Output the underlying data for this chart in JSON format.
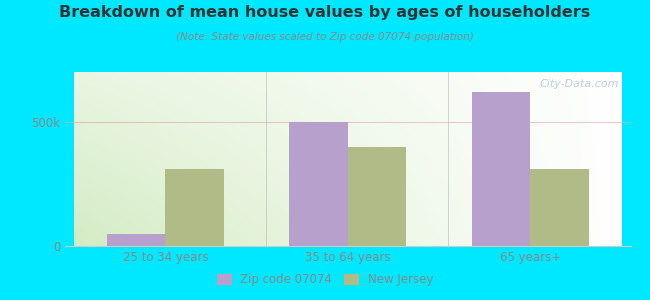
{
  "title": "Breakdown of mean house values by ages of householders",
  "subtitle": "(Note: State values scaled to Zip code 07074 population)",
  "categories": [
    "25 to 34 years",
    "35 to 64 years",
    "65 years+"
  ],
  "zip_values": [
    50000,
    500000,
    620000
  ],
  "nj_values": [
    310000,
    400000,
    310000
  ],
  "zip_color": "#b8a0cc",
  "nj_color": "#b0bb88",
  "background_outer": "#00e8ff",
  "text_color": "#888888",
  "title_color": "#333333",
  "ytick_labels": [
    "0",
    "500k"
  ],
  "ytick_values": [
    0,
    500000
  ],
  "ylim": [
    0,
    700000
  ],
  "watermark": "City-Data.com",
  "legend_zip_label": "Zip code 07074",
  "legend_nj_label": "New Jersey",
  "bar_width": 0.32
}
